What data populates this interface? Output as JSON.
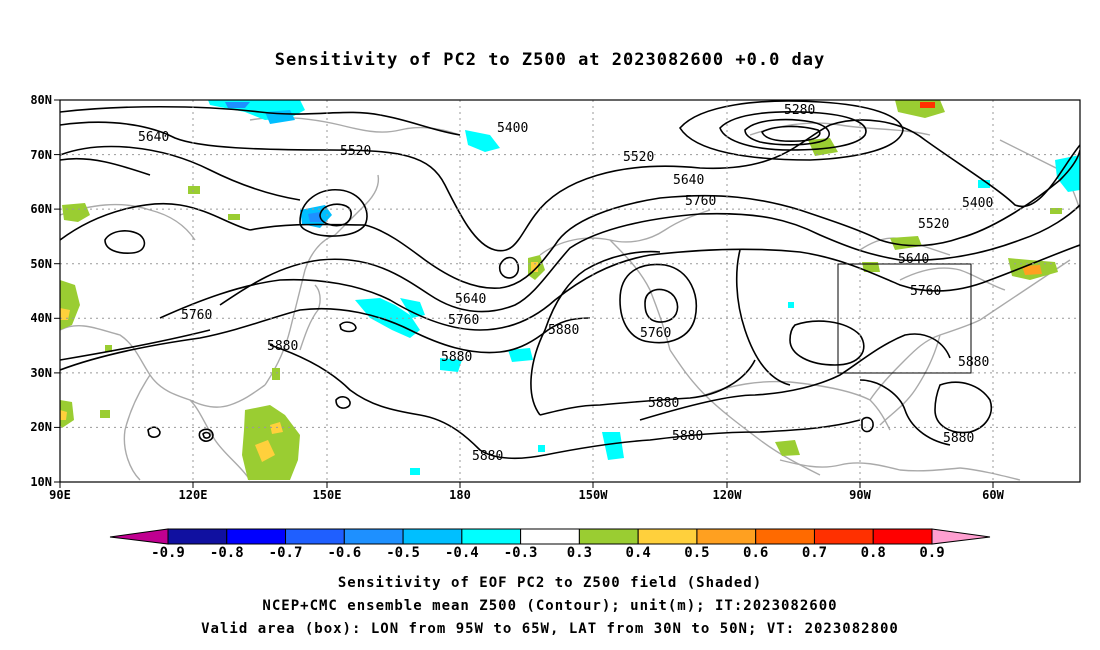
{
  "title": "Sensitivity of PC2 to Z500 at 2023082600 +0.0 day",
  "lat_labels": [
    "80N",
    "70N",
    "60N",
    "50N",
    "40N",
    "30N",
    "20N",
    "10N"
  ],
  "lon_labels": [
    "90E",
    "120E",
    "150E",
    "180",
    "150W",
    "120W",
    "90W",
    "60W"
  ],
  "contour_labels": [
    {
      "text": "5280"
    },
    {
      "text": "5400"
    },
    {
      "text": "5400"
    },
    {
      "text": "5520"
    },
    {
      "text": "5520"
    },
    {
      "text": "5520"
    },
    {
      "text": "5640"
    },
    {
      "text": "5640"
    },
    {
      "text": "5640"
    },
    {
      "text": "5640"
    },
    {
      "text": "5760"
    },
    {
      "text": "5760"
    },
    {
      "text": "5760"
    },
    {
      "text": "5760"
    },
    {
      "text": "5760"
    },
    {
      "text": "5880"
    },
    {
      "text": "5880"
    },
    {
      "text": "5880"
    },
    {
      "text": "5880"
    },
    {
      "text": "5880"
    },
    {
      "text": "5880"
    },
    {
      "text": "5880"
    },
    {
      "text": "5880"
    }
  ],
  "valid_box": {
    "lon_from": "95W",
    "lon_to": "65W",
    "lat_from": "30N",
    "lat_to": "50N"
  },
  "colorbar": {
    "labels": [
      "-0.9",
      "-0.8",
      "-0.7",
      "-0.6",
      "-0.5",
      "-0.4",
      "-0.3",
      "0.3",
      "0.4",
      "0.5",
      "0.6",
      "0.7",
      "0.8",
      "0.9"
    ],
    "colors": [
      "#1010a0",
      "#0000ff",
      "#1f5fff",
      "#1e90ff",
      "#00bfff",
      "#00ffff",
      "#ffffff",
      "#9acd32",
      "#ffd03c",
      "#ffa020",
      "#ff6a00",
      "#ff3000",
      "#ff0000"
    ],
    "low_arrow_color": "#c00090",
    "high_arrow_color": "#ff9fd0"
  },
  "footer": {
    "line1": "Sensitivity of EOF PC2 to Z500 field (Shaded)",
    "line2": "NCEP+CMC ensemble mean Z500 (Contour); unit(m); IT:2023082600",
    "line3": "Valid area (box): LON from 95W to 65W, LAT from 30N to 50N; VT: 2023082800"
  }
}
